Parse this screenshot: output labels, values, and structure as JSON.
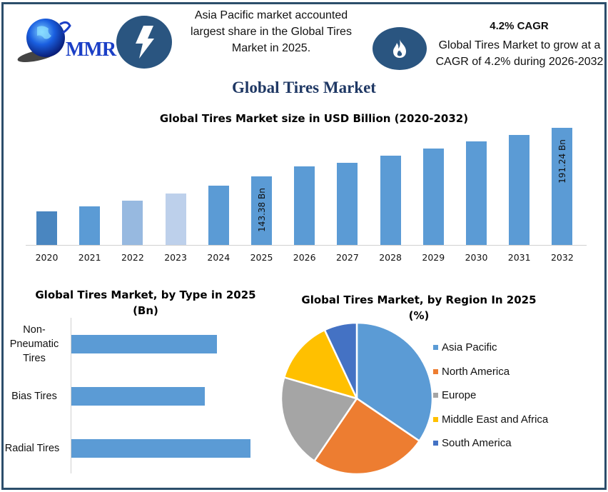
{
  "brand": {
    "logo_text": "MMR"
  },
  "stats": [
    {
      "icon": "lightning-icon",
      "text": "Asia Pacific market accounted largest share in the Global Tires Market in 2025."
    },
    {
      "icon": "flame-icon",
      "heading": "4.2% CAGR",
      "text": "Global Tires Market to grow at a CAGR of 4.2% during 2026-2032"
    }
  ],
  "main_title": "Global Tires Market",
  "colors": {
    "frame": "#2c4e6b",
    "icon_bg": "#2a5580",
    "bar": "#5b9bd5",
    "title": "#1f3864"
  },
  "chart_data": [
    {
      "type": "bar",
      "title": "Global Tires Market size in USD Billion (2020-2032)",
      "xlabel": "",
      "ylabel": "",
      "categories": [
        "2020",
        "2021",
        "2022",
        "2023",
        "2024",
        "2025",
        "2026",
        "2027",
        "2028",
        "2029",
        "2030",
        "2031",
        "2032"
      ],
      "values": [
        108.9,
        113.8,
        119.4,
        126.5,
        134.2,
        143.38,
        153.2,
        156.8,
        163.8,
        170.8,
        177.9,
        184.2,
        191.24
      ],
      "bar_colors": [
        "#4a86c0",
        "#5b9bd5",
        "#97b9e0",
        "#bdd0eb",
        "#5b9bd5",
        "#5b9bd5",
        "#5b9bd5",
        "#5b9bd5",
        "#5b9bd5",
        "#5b9bd5",
        "#5b9bd5",
        "#5b9bd5",
        "#5b9bd5"
      ],
      "data_labels": {
        "2025": "143.38 Bn",
        "2032": "191.24 Bn"
      },
      "grid": false
    },
    {
      "type": "bar",
      "orientation": "horizontal",
      "title": "Global Tires Market, by Type in 2025 (Bn)",
      "categories": [
        "Non-Pneumatic Tires",
        "Bias Tires",
        "Radial Tires"
      ],
      "values": [
        81,
        74,
        100
      ],
      "value_note": "relative lengths, no axis values shown",
      "grid": false
    },
    {
      "type": "pie",
      "title": "Global Tires Market, by Region In 2025 (%)",
      "categories": [
        "Asia Pacific",
        "North America",
        "Europe",
        "Middle East and Africa",
        "South America"
      ],
      "values": [
        34.5,
        25,
        20,
        13.5,
        7
      ],
      "colors": [
        "#5b9bd5",
        "#ed7d31",
        "#a5a5a5",
        "#ffc000",
        "#4472c4"
      ],
      "legend_position": "right"
    }
  ],
  "bar_chart": {
    "title": "Global Tires Market size in USD Billion (2020-2032)",
    "label_2025": "143.38 Bn",
    "label_2032": "191.24 Bn",
    "years": [
      "2020",
      "2021",
      "2022",
      "2023",
      "2024",
      "2025",
      "2026",
      "2027",
      "2028",
      "2029",
      "2030",
      "2031",
      "2032"
    ]
  },
  "type_chart": {
    "title_line1": "Global Tires Market, by Type in 2025",
    "title_line2": "(Bn)",
    "labels": [
      "Non-\nPneumatic\nTires",
      "Bias Tires",
      "Radial Tires"
    ]
  },
  "region_chart": {
    "title_line1": "Global Tires Market, by Region In 2025",
    "title_line2": "(%)",
    "legend": [
      "Asia Pacific",
      "North America",
      "Europe",
      "Middle East and Africa",
      "South America"
    ]
  }
}
